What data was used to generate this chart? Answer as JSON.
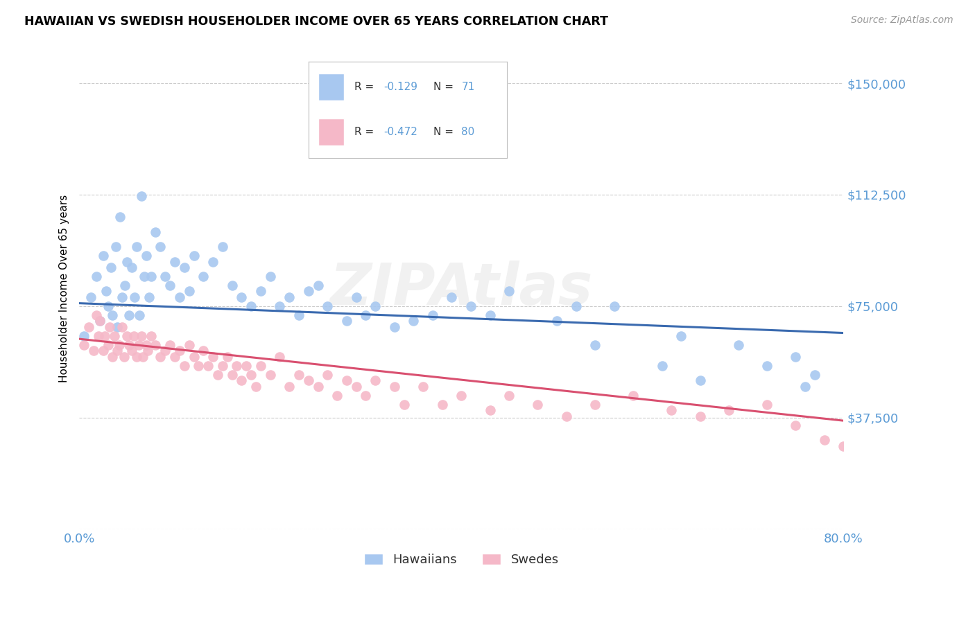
{
  "title": "HAWAIIAN VS SWEDISH HOUSEHOLDER INCOME OVER 65 YEARS CORRELATION CHART",
  "source": "Source: ZipAtlas.com",
  "ylabel": "Householder Income Over 65 years",
  "xlim": [
    0.0,
    0.8
  ],
  "ylim": [
    0,
    162000
  ],
  "yticks": [
    0,
    37500,
    75000,
    112500,
    150000
  ],
  "ytick_labels": [
    "",
    "$37,500",
    "$75,000",
    "$112,500",
    "$150,000"
  ],
  "hawaiians_R": -0.129,
  "hawaiians_N": 71,
  "swedes_R": -0.472,
  "swedes_N": 80,
  "blue_scatter": "#A8C8F0",
  "pink_scatter": "#F5B8C8",
  "blue_line_color": "#3A6AAF",
  "pink_line_color": "#D95070",
  "tick_color": "#5B9BD5",
  "grid_color": "#CCCCCC",
  "watermark": "ZIPAtlas",
  "hawaiians_x": [
    0.005,
    0.012,
    0.018,
    0.022,
    0.025,
    0.028,
    0.03,
    0.033,
    0.035,
    0.038,
    0.04,
    0.043,
    0.045,
    0.048,
    0.05,
    0.052,
    0.055,
    0.058,
    0.06,
    0.063,
    0.065,
    0.068,
    0.07,
    0.073,
    0.075,
    0.08,
    0.085,
    0.09,
    0.095,
    0.1,
    0.105,
    0.11,
    0.115,
    0.12,
    0.13,
    0.14,
    0.15,
    0.16,
    0.17,
    0.18,
    0.19,
    0.2,
    0.21,
    0.22,
    0.23,
    0.24,
    0.25,
    0.26,
    0.28,
    0.29,
    0.3,
    0.31,
    0.33,
    0.35,
    0.37,
    0.39,
    0.41,
    0.43,
    0.45,
    0.5,
    0.52,
    0.54,
    0.56,
    0.61,
    0.63,
    0.65,
    0.69,
    0.72,
    0.75,
    0.76,
    0.77
  ],
  "hawaiians_y": [
    65000,
    78000,
    85000,
    70000,
    92000,
    80000,
    75000,
    88000,
    72000,
    95000,
    68000,
    105000,
    78000,
    82000,
    90000,
    72000,
    88000,
    78000,
    95000,
    72000,
    112000,
    85000,
    92000,
    78000,
    85000,
    100000,
    95000,
    85000,
    82000,
    90000,
    78000,
    88000,
    80000,
    92000,
    85000,
    90000,
    95000,
    82000,
    78000,
    75000,
    80000,
    85000,
    75000,
    78000,
    72000,
    80000,
    82000,
    75000,
    70000,
    78000,
    72000,
    75000,
    68000,
    70000,
    72000,
    78000,
    75000,
    72000,
    80000,
    70000,
    75000,
    62000,
    75000,
    55000,
    65000,
    50000,
    62000,
    55000,
    58000,
    48000,
    52000
  ],
  "swedes_x": [
    0.005,
    0.01,
    0.015,
    0.018,
    0.02,
    0.022,
    0.025,
    0.027,
    0.03,
    0.032,
    0.035,
    0.037,
    0.04,
    0.042,
    0.045,
    0.047,
    0.05,
    0.052,
    0.055,
    0.057,
    0.06,
    0.062,
    0.065,
    0.067,
    0.07,
    0.072,
    0.075,
    0.08,
    0.085,
    0.09,
    0.095,
    0.1,
    0.105,
    0.11,
    0.115,
    0.12,
    0.125,
    0.13,
    0.135,
    0.14,
    0.145,
    0.15,
    0.155,
    0.16,
    0.165,
    0.17,
    0.175,
    0.18,
    0.185,
    0.19,
    0.2,
    0.21,
    0.22,
    0.23,
    0.24,
    0.25,
    0.26,
    0.27,
    0.28,
    0.29,
    0.3,
    0.31,
    0.33,
    0.34,
    0.36,
    0.38,
    0.4,
    0.43,
    0.45,
    0.48,
    0.51,
    0.54,
    0.58,
    0.62,
    0.65,
    0.68,
    0.72,
    0.75,
    0.78,
    0.8
  ],
  "swedes_y": [
    62000,
    68000,
    60000,
    72000,
    65000,
    70000,
    60000,
    65000,
    62000,
    68000,
    58000,
    65000,
    60000,
    62000,
    68000,
    58000,
    65000,
    62000,
    60000,
    65000,
    58000,
    62000,
    65000,
    58000,
    62000,
    60000,
    65000,
    62000,
    58000,
    60000,
    62000,
    58000,
    60000,
    55000,
    62000,
    58000,
    55000,
    60000,
    55000,
    58000,
    52000,
    55000,
    58000,
    52000,
    55000,
    50000,
    55000,
    52000,
    48000,
    55000,
    52000,
    58000,
    48000,
    52000,
    50000,
    48000,
    52000,
    45000,
    50000,
    48000,
    45000,
    50000,
    48000,
    42000,
    48000,
    42000,
    45000,
    40000,
    45000,
    42000,
    38000,
    42000,
    45000,
    40000,
    38000,
    40000,
    42000,
    35000,
    30000,
    28000
  ]
}
